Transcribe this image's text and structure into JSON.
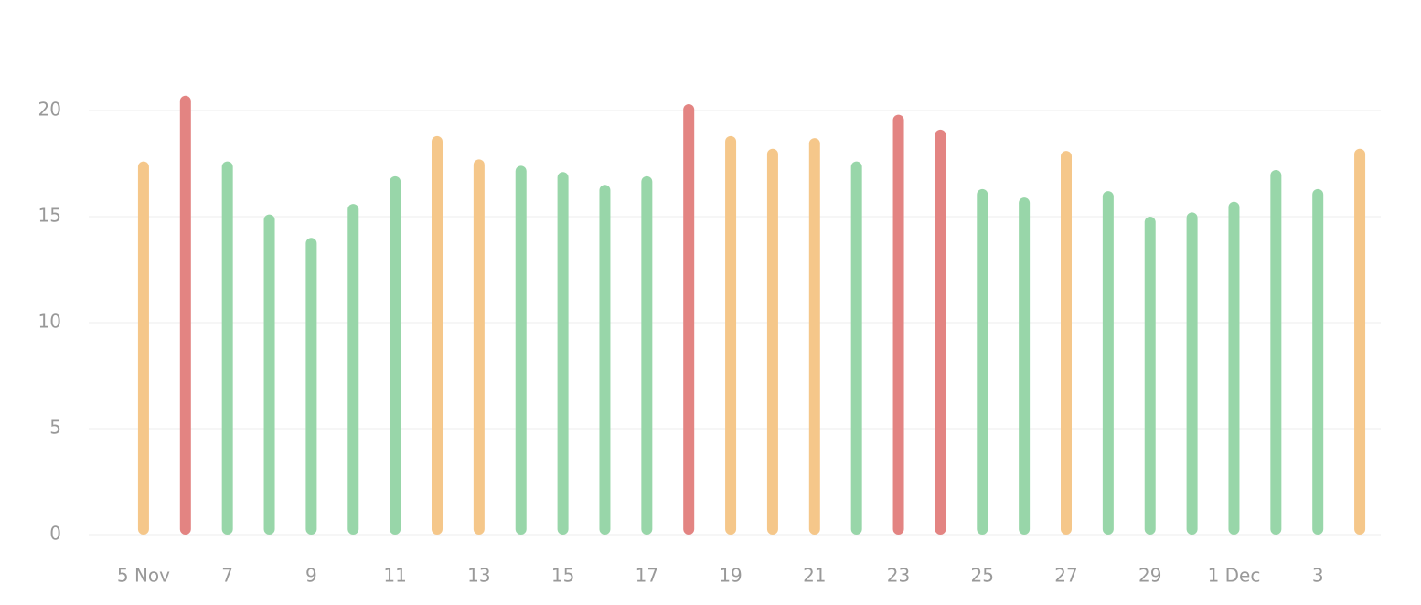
{
  "chart_data": {
    "type": "bar",
    "categories": [
      "5 Nov",
      null,
      "7",
      null,
      "9",
      null,
      "11",
      null,
      "13",
      null,
      "15",
      null,
      "17",
      null,
      "19",
      null,
      "21",
      null,
      "23",
      null,
      "25",
      null,
      "27",
      null,
      "29",
      null,
      "1 Dec",
      null,
      "3",
      null
    ],
    "values": [
      17.6,
      20.7,
      17.6,
      15.1,
      14.0,
      15.6,
      16.9,
      18.8,
      17.7,
      17.4,
      17.1,
      16.5,
      16.9,
      20.3,
      18.8,
      18.2,
      18.7,
      17.6,
      19.8,
      19.1,
      16.3,
      15.9,
      18.1,
      16.2,
      15.0,
      15.2,
      15.7,
      17.2,
      16.3,
      18.2
    ],
    "colors": [
      "#f5c78a",
      "#e38482",
      "#98d6a9",
      "#98d6a9",
      "#98d6a9",
      "#98d6a9",
      "#98d6a9",
      "#f5c78a",
      "#f5c78a",
      "#98d6a9",
      "#98d6a9",
      "#98d6a9",
      "#98d6a9",
      "#e38482",
      "#f5c78a",
      "#f5c78a",
      "#f5c78a",
      "#98d6a9",
      "#e38482",
      "#e38482",
      "#98d6a9",
      "#98d6a9",
      "#f5c78a",
      "#98d6a9",
      "#98d6a9",
      "#98d6a9",
      "#98d6a9",
      "#98d6a9",
      "#98d6a9",
      "#f5c78a"
    ],
    "ylim": [
      0,
      22
    ],
    "yticks": [
      0,
      5,
      10,
      15,
      20
    ],
    "grid": true
  }
}
